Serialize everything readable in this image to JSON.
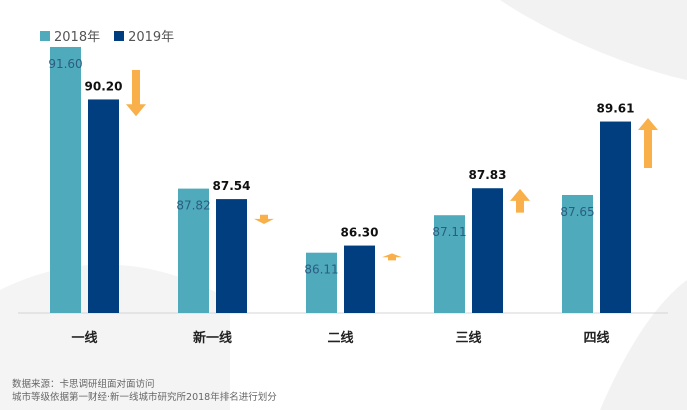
{
  "chart_data": {
    "type": "bar",
    "categories": [
      "一线",
      "新一线",
      "二线",
      "三线",
      "四线"
    ],
    "series": [
      {
        "name": "2018年",
        "color": "#4fabbb",
        "values": [
          91.6,
          87.82,
          86.11,
          87.11,
          87.65
        ],
        "labels": [
          "91.60",
          "87.82",
          "86.11",
          "87.11",
          "87.65"
        ]
      },
      {
        "name": "2019年",
        "color": "#003e80",
        "values": [
          90.2,
          87.54,
          86.3,
          87.83,
          89.61
        ],
        "labels": [
          "90.20",
          "87.54",
          "86.30",
          "87.83",
          "89.61"
        ]
      }
    ],
    "trend": [
      "down",
      "down",
      "up",
      "up",
      "up"
    ],
    "trend_color": "#f9b04a",
    "ylim": [
      84.5,
      92
    ],
    "grid": false,
    "legend_position": "top-left"
  },
  "footnote": {
    "source": "数据来源：卡思调研组面对面访问",
    "note": "城市等级依据第一财经·新一线城市研究所2018年排名进行划分"
  }
}
